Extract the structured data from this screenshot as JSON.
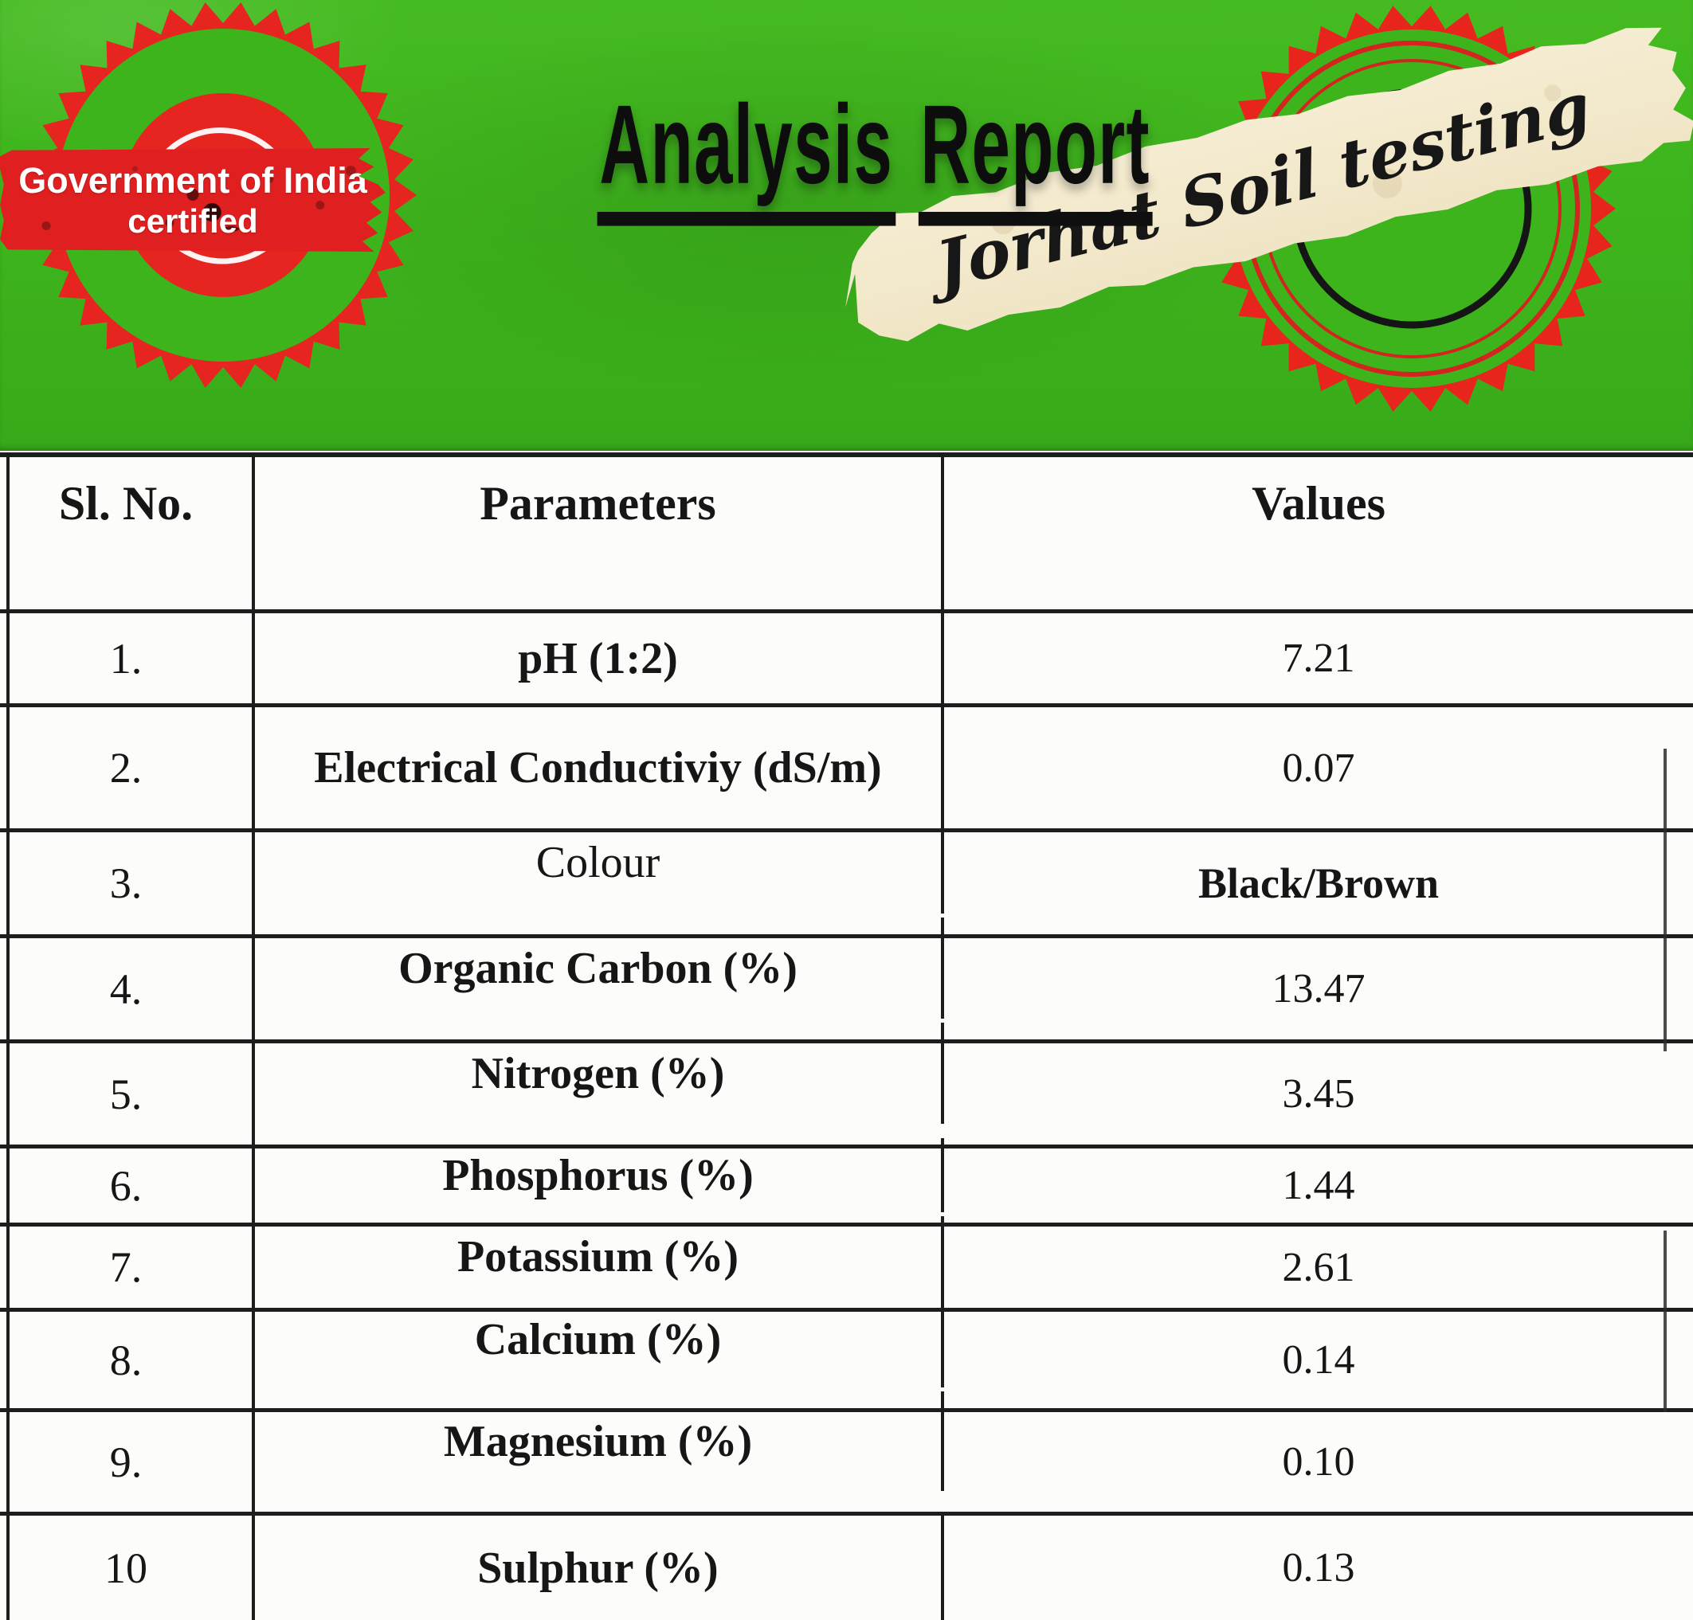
{
  "header": {
    "title_word1": "Analysis",
    "title_word2": "Report",
    "left_stamp": {
      "line1": "Government of India",
      "line2": "certified"
    },
    "right_stamp": {
      "text": "Jorhat Soil testing"
    }
  },
  "table": {
    "columns": [
      "Sl. No.",
      "Parameters",
      "Values"
    ],
    "rows": [
      {
        "sl": "1.",
        "parameter": "pH (1:2)",
        "value": "7.21"
      },
      {
        "sl": "2.",
        "parameter": "Electrical Conductiviy (dS/m)",
        "value": "0.07"
      },
      {
        "sl": "3.",
        "parameter": "Colour",
        "value": "Black/Brown"
      },
      {
        "sl": "4.",
        "parameter": "Organic Carbon (%)",
        "value": "13.47"
      },
      {
        "sl": "5.",
        "parameter": "Nitrogen (%)",
        "value": "3.45"
      },
      {
        "sl": "6.",
        "parameter": "Phosphorus (%)",
        "value": "1.44"
      },
      {
        "sl": "7.",
        "parameter": "Potassium (%)",
        "value": "2.61"
      },
      {
        "sl": "8.",
        "parameter": "Calcium (%)",
        "value": "0.14"
      },
      {
        "sl": "9.",
        "parameter": "Magnesium (%)",
        "value": "0.10"
      },
      {
        "sl": "10",
        "parameter": "Sulphur (%)",
        "value": "0.13"
      }
    ]
  },
  "colors": {
    "banner_green": "#3db31c",
    "stamp_red": "#e62420",
    "ribbon_red": "#e02020",
    "paper_cream": "#f2e8cb",
    "ink": "#161616",
    "white": "#ffffff"
  }
}
